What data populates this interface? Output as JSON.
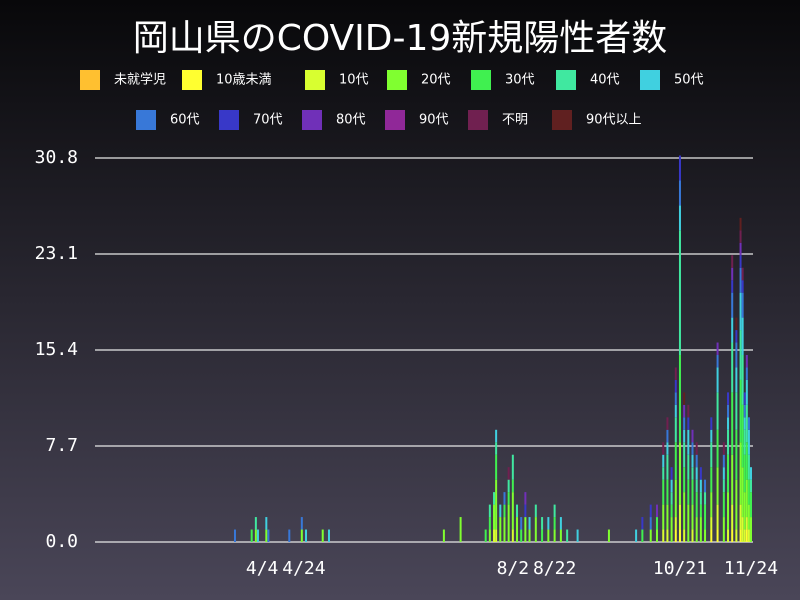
{
  "chart_data": {
    "type": "stacked-bar",
    "title": "岡山県のCOVID-19新規陽性者数",
    "x": [
      "3/22",
      "3/30",
      "4/1",
      "4/2",
      "4/6",
      "4/7",
      "4/17",
      "4/23",
      "4/25",
      "5/3",
      "5/6",
      "6/30",
      "7/8",
      "7/20",
      "7/22",
      "7/24",
      "7/25",
      "7/27",
      "7/29",
      "7/31",
      "8/2",
      "8/4",
      "8/6",
      "8/8",
      "8/10",
      "8/13",
      "8/16",
      "8/19",
      "8/22",
      "8/25",
      "8/28",
      "9/2",
      "9/17",
      "9/30",
      "10/3",
      "10/7",
      "10/10",
      "10/13",
      "10/15",
      "10/17",
      "10/19",
      "10/21",
      "10/23",
      "10/25",
      "10/27",
      "10/29",
      "10/31",
      "11/2",
      "11/5",
      "11/8",
      "11/11",
      "11/13",
      "11/15",
      "11/17",
      "11/19",
      "11/20",
      "11/21",
      "11/22",
      "11/23",
      "11/24"
    ],
    "xlim": [
      "1/15",
      "11/24"
    ],
    "xticks": [
      "4/4",
      "4/24",
      "8/2",
      "8/22",
      "10/21",
      "11/24"
    ],
    "ylim": [
      0,
      30.8
    ],
    "yticks": [
      {
        "value": 0,
        "label": "0.0"
      },
      7.7,
      15.4,
      23.1,
      30.8
    ],
    "grid": true,
    "series": [
      {
        "name": "未就学児",
        "color": "#ffc030",
        "values": [
          0,
          0,
          0,
          0,
          0,
          0,
          0,
          0,
          0,
          0,
          0,
          0,
          0,
          0,
          0,
          0,
          0,
          0,
          0,
          0,
          0,
          0,
          0,
          0,
          0,
          0,
          0,
          0,
          0,
          0,
          0,
          0,
          0,
          0,
          0,
          0,
          0,
          0,
          0,
          0,
          0,
          0,
          0,
          0,
          0,
          0,
          0,
          0,
          0,
          0,
          0,
          0,
          0,
          0,
          0,
          0,
          0,
          0,
          0,
          0
        ]
      },
      {
        "name": "10歳未満",
        "color": "#ffff30",
        "values": [
          0,
          0,
          0,
          0,
          0,
          0,
          0,
          0,
          0,
          0,
          0,
          0,
          0,
          0,
          0,
          0,
          0,
          0,
          0,
          0,
          0,
          0,
          0,
          0,
          0,
          0,
          0,
          0,
          0,
          0,
          0,
          0,
          0,
          0,
          0,
          0,
          0,
          0,
          0,
          0,
          1,
          1,
          0,
          0,
          0,
          0,
          0,
          0,
          1,
          1,
          0,
          0,
          1,
          0,
          1,
          0,
          0,
          1,
          0,
          0
        ]
      },
      {
        "name": "10代",
        "color": "#d8ff30",
        "values": [
          0,
          0,
          0,
          0,
          0,
          0,
          0,
          0,
          0,
          0,
          0,
          0,
          0,
          0,
          0,
          1,
          1,
          0,
          0,
          0,
          1,
          0,
          0,
          0,
          0,
          0,
          0,
          0,
          0,
          0,
          0,
          0,
          0,
          0,
          0,
          0,
          0,
          1,
          1,
          0,
          1,
          2,
          1,
          0,
          1,
          0,
          0,
          0,
          1,
          2,
          0,
          1,
          2,
          1,
          2,
          2,
          1,
          1,
          1,
          0
        ]
      },
      {
        "name": "20代",
        "color": "#80ff30",
        "values": [
          0,
          0,
          1,
          0,
          1,
          0,
          0,
          1,
          0,
          1,
          0,
          1,
          2,
          0,
          1,
          2,
          4,
          2,
          2,
          3,
          3,
          2,
          0,
          2,
          1,
          2,
          0,
          1,
          1,
          1,
          0,
          0,
          1,
          0,
          0,
          1,
          1,
          2,
          2,
          2,
          3,
          5,
          3,
          3,
          2,
          2,
          2,
          1,
          2,
          3,
          2,
          3,
          4,
          4,
          5,
          4,
          3,
          3,
          2,
          2
        ]
      },
      {
        "name": "30代",
        "color": "#40f050",
        "values": [
          0,
          1,
          0,
          0,
          0,
          0,
          0,
          0,
          0,
          0,
          0,
          0,
          0,
          1,
          1,
          0,
          2,
          0,
          1,
          1,
          1,
          0,
          1,
          0,
          0,
          0,
          1,
          0,
          1,
          0,
          0,
          0,
          0,
          0,
          1,
          0,
          1,
          2,
          2,
          1,
          3,
          7,
          2,
          2,
          2,
          2,
          1,
          2,
          2,
          3,
          2,
          3,
          5,
          4,
          5,
          5,
          3,
          3,
          2,
          2
        ]
      },
      {
        "name": "40代",
        "color": "#40e8a0",
        "values": [
          0,
          0,
          1,
          0,
          0,
          0,
          0,
          0,
          0,
          0,
          0,
          0,
          0,
          0,
          1,
          1,
          1,
          0,
          0,
          1,
          2,
          1,
          0,
          0,
          0,
          1,
          1,
          0,
          1,
          0,
          1,
          0,
          0,
          0,
          0,
          0,
          0,
          1,
          2,
          1,
          2,
          10,
          2,
          2,
          1,
          1,
          1,
          1,
          2,
          3,
          1,
          2,
          4,
          3,
          4,
          4,
          2,
          3,
          2,
          1
        ]
      },
      {
        "name": "50代",
        "color": "#40d0e0",
        "values": [
          0,
          0,
          0,
          1,
          1,
          0,
          0,
          0,
          1,
          0,
          1,
          0,
          0,
          0,
          0,
          0,
          1,
          1,
          0,
          0,
          0,
          0,
          0,
          0,
          1,
          0,
          0,
          1,
          0,
          1,
          0,
          1,
          0,
          1,
          0,
          0,
          0,
          1,
          1,
          1,
          1,
          2,
          1,
          2,
          1,
          1,
          1,
          0,
          1,
          2,
          1,
          1,
          2,
          2,
          3,
          3,
          1,
          2,
          2,
          1
        ]
      },
      {
        "name": "60代",
        "color": "#3878d8",
        "values": [
          1,
          0,
          0,
          0,
          0,
          1,
          1,
          1,
          0,
          0,
          0,
          0,
          0,
          0,
          0,
          0,
          0,
          0,
          1,
          0,
          0,
          0,
          1,
          0,
          0,
          0,
          0,
          0,
          0,
          0,
          0,
          0,
          0,
          0,
          0,
          1,
          0,
          0,
          1,
          0,
          1,
          2,
          1,
          0,
          1,
          1,
          0,
          1,
          0,
          1,
          1,
          1,
          2,
          2,
          2,
          2,
          1,
          1,
          1,
          0
        ]
      },
      {
        "name": "70代",
        "color": "#3838c8",
        "values": [
          0,
          0,
          0,
          0,
          0,
          0,
          0,
          0,
          0,
          0,
          0,
          0,
          0,
          0,
          0,
          0,
          0,
          0,
          0,
          0,
          0,
          0,
          0,
          1,
          0,
          0,
          0,
          0,
          0,
          0,
          0,
          0,
          0,
          0,
          1,
          1,
          0,
          0,
          0,
          1,
          1,
          2,
          0,
          1,
          0,
          0,
          1,
          0,
          1,
          0,
          0,
          1,
          1,
          1,
          1,
          1,
          1,
          0,
          0,
          0
        ]
      },
      {
        "name": "80代",
        "color": "#7030b8",
        "values": [
          0,
          0,
          0,
          0,
          0,
          0,
          0,
          0,
          0,
          0,
          0,
          0,
          0,
          0,
          0,
          0,
          0,
          0,
          0,
          0,
          0,
          0,
          0,
          1,
          0,
          0,
          0,
          0,
          0,
          0,
          0,
          0,
          0,
          0,
          0,
          0,
          1,
          0,
          0,
          0,
          0,
          0,
          1,
          0,
          1,
          0,
          0,
          0,
          0,
          1,
          0,
          0,
          1,
          0,
          1,
          0,
          0,
          1,
          0,
          0
        ]
      },
      {
        "name": "90代",
        "color": "#902898",
        "values": [
          0,
          0,
          0,
          0,
          0,
          0,
          0,
          0,
          0,
          0,
          0,
          0,
          0,
          0,
          0,
          0,
          0,
          0,
          0,
          0,
          0,
          0,
          0,
          0,
          0,
          0,
          0,
          0,
          0,
          0,
          0,
          0,
          0,
          0,
          0,
          0,
          0,
          0,
          0,
          0,
          0,
          0,
          0,
          0,
          0,
          0,
          0,
          0,
          0,
          0,
          0,
          0,
          0,
          0,
          0,
          0,
          0,
          0,
          0,
          0
        ]
      },
      {
        "name": "不明",
        "color": "#702050",
        "values": [
          0,
          0,
          0,
          0,
          0,
          0,
          0,
          0,
          0,
          0,
          0,
          0,
          0,
          0,
          0,
          0,
          0,
          0,
          0,
          1,
          0,
          0,
          0,
          0,
          0,
          0,
          0,
          0,
          0,
          0,
          0,
          0,
          0,
          0,
          0,
          0,
          0,
          1,
          1,
          0,
          1,
          0,
          0,
          1,
          0,
          1,
          0,
          0,
          0,
          0,
          1,
          0,
          1,
          0,
          1,
          1,
          0,
          0,
          0,
          0
        ]
      },
      {
        "name": "90代以上",
        "color": "#602020",
        "values": [
          0,
          0,
          0,
          0,
          0,
          0,
          0,
          0,
          0,
          0,
          0,
          0,
          0,
          0,
          0,
          0,
          0,
          0,
          0,
          0,
          0,
          0,
          0,
          0,
          0,
          0,
          0,
          0,
          0,
          0,
          0,
          0,
          0,
          0,
          0,
          0,
          0,
          0,
          0,
          0,
          0,
          0,
          1,
          0,
          0,
          0,
          0,
          0,
          0,
          0,
          0,
          0,
          0,
          1,
          1,
          0,
          0,
          0,
          0,
          0
        ]
      }
    ]
  }
}
